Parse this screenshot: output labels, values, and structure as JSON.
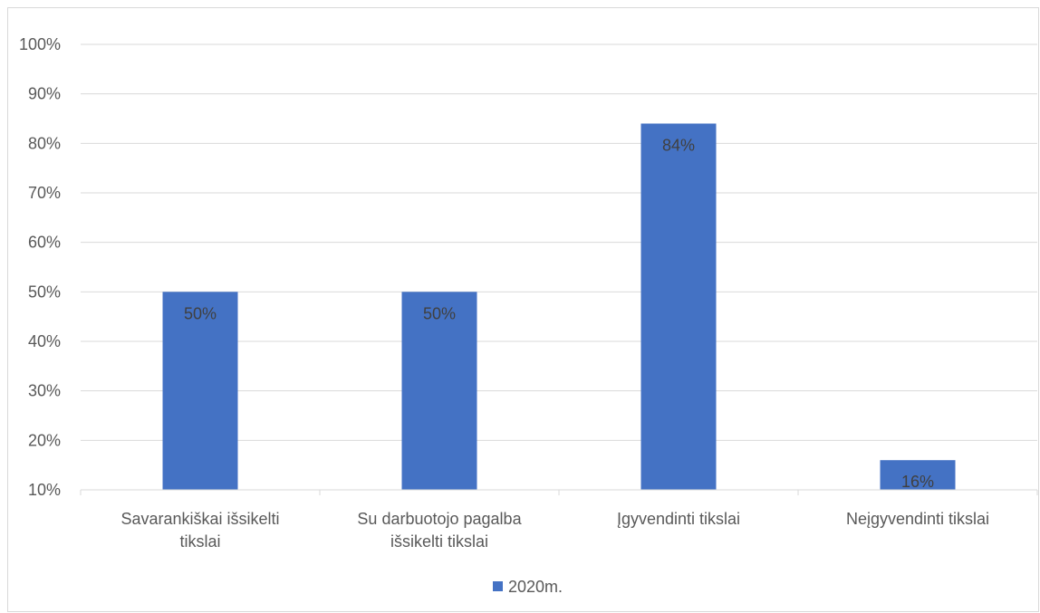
{
  "chart_data": {
    "type": "bar",
    "categories": [
      [
        "Savarankiškai išsikelti",
        "tikslai"
      ],
      [
        "Su darbuotojo pagalba",
        "išsikelti tikslai"
      ],
      [
        "Įgyvendinti tikslai"
      ],
      [
        "Neįgyvendinti tikslai"
      ]
    ],
    "series": [
      {
        "name": "2020m.",
        "values": [
          50,
          50,
          84,
          16
        ],
        "color": "#4472C4"
      }
    ],
    "data_labels": [
      "50%",
      "50%",
      "84%",
      "16%"
    ],
    "ylim": [
      10,
      100
    ],
    "yticks": [
      10,
      20,
      30,
      40,
      50,
      60,
      70,
      80,
      90,
      100
    ],
    "ytick_labels": [
      "10%",
      "20%",
      "30%",
      "40%",
      "50%",
      "60%",
      "70%",
      "80%",
      "90%",
      "100%"
    ],
    "grid": true,
    "legend_position": "bottom",
    "title": "",
    "xlabel": "",
    "ylabel": ""
  }
}
